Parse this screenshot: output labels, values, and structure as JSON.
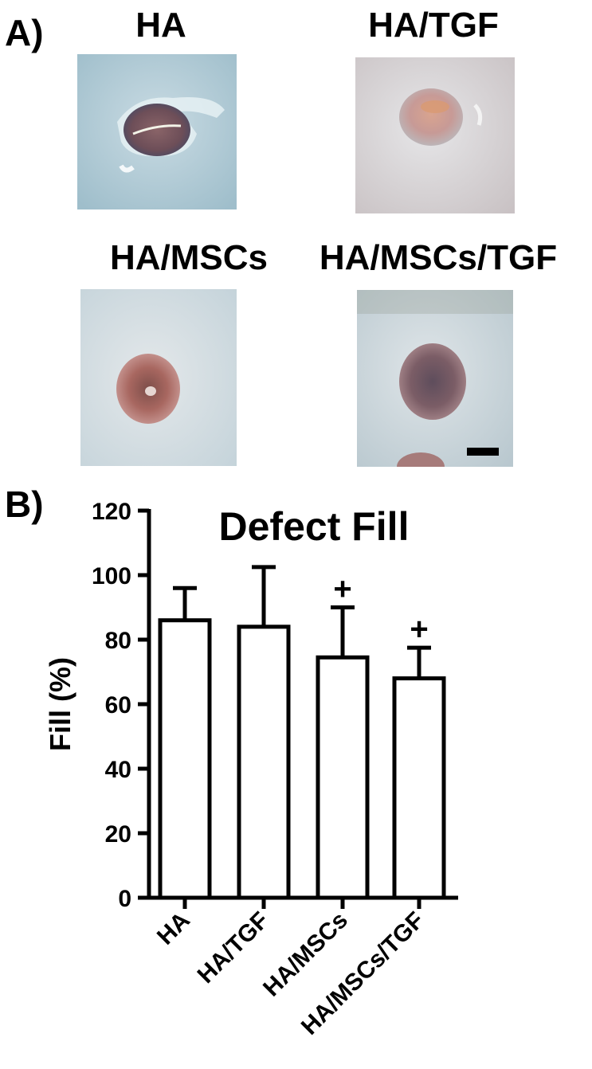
{
  "panel_a": {
    "label": "A)",
    "photos": [
      {
        "title": "HA"
      },
      {
        "title": "HA/TGF"
      },
      {
        "title": "HA/MSCs"
      },
      {
        "title": "HA/MSCs/TGF"
      }
    ]
  },
  "panel_b": {
    "label": "B)"
  },
  "chart_data": {
    "type": "bar",
    "title": "Defect Fill",
    "xlabel": "",
    "ylabel": "Fill (%)",
    "ylim": [
      0,
      120
    ],
    "yticks": [
      0,
      20,
      40,
      60,
      80,
      100,
      120
    ],
    "categories": [
      "HA",
      "HA/TGF",
      "HA/MSCs",
      "HA/MSCs/TGF"
    ],
    "values": [
      86,
      84,
      74.5,
      68
    ],
    "error_plus": [
      10,
      18.5,
      15.5,
      9.5
    ],
    "annotations": [
      "",
      "",
      "+",
      "+"
    ],
    "grid": false,
    "legend": "none",
    "bar_fill": "#ffffff",
    "bar_stroke": "#000000"
  }
}
